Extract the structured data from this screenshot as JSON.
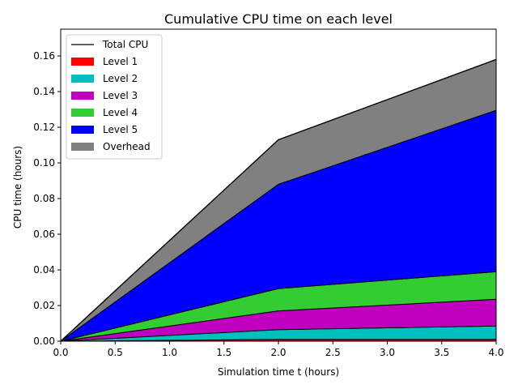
{
  "chart_data": {
    "type": "area",
    "title": "Cumulative CPU time on each level",
    "xlabel": "Simulation time t (hours)",
    "ylabel": "CPU time (hours)",
    "xlim": [
      0,
      4
    ],
    "ylim": [
      0,
      0.175
    ],
    "x": [
      0,
      2,
      4
    ],
    "stacked": true,
    "grid": false,
    "legend_position": "top-left",
    "x_ticks": [
      "0.0",
      "0.5",
      "1.0",
      "1.5",
      "2.0",
      "2.5",
      "3.0",
      "3.5",
      "4.0"
    ],
    "x_tick_values": [
      0,
      0.5,
      1,
      1.5,
      2,
      2.5,
      3,
      3.5,
      4
    ],
    "y_ticks": [
      "0.00",
      "0.02",
      "0.04",
      "0.06",
      "0.08",
      "0.10",
      "0.12",
      "0.14",
      "0.16"
    ],
    "y_tick_values": [
      0,
      0.02,
      0.04,
      0.06,
      0.08,
      0.1,
      0.12,
      0.14,
      0.16
    ],
    "total_label": "Total CPU",
    "total_values": [
      0,
      0.113,
      0.158
    ],
    "series": [
      {
        "name": "Level 1",
        "color": "#ff0000",
        "values": [
          0,
          0.001,
          0.001
        ]
      },
      {
        "name": "Level 2",
        "color": "#00bfbf",
        "values": [
          0,
          0.0055,
          0.0075
        ]
      },
      {
        "name": "Level 3",
        "color": "#bf00bf",
        "values": [
          0,
          0.0105,
          0.015
        ]
      },
      {
        "name": "Level 4",
        "color": "#32cd32",
        "values": [
          0,
          0.0125,
          0.0155
        ]
      },
      {
        "name": "Level 5",
        "color": "#0000ff",
        "values": [
          0,
          0.0585,
          0.0905
        ]
      },
      {
        "name": "Overhead",
        "color": "#808080",
        "values": [
          0,
          0.025,
          0.0285
        ]
      }
    ]
  }
}
